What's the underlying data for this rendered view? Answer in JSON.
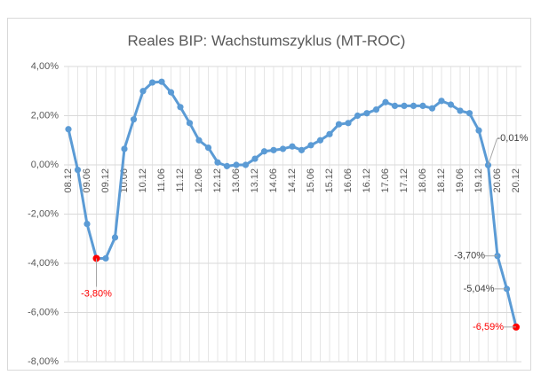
{
  "chart_data": {
    "type": "line",
    "title": "Reales BIP: Wachstumszyklus (MT-ROC)",
    "categories": [
      "08.12",
      null,
      "09.06",
      null,
      "09.12",
      null,
      "10.06",
      null,
      "10.12",
      null,
      "11.06",
      null,
      "11.12",
      null,
      "12.06",
      null,
      "12.12",
      null,
      "13.06",
      null,
      "13.12",
      null,
      "14.06",
      null,
      "14.12",
      null,
      "15.06",
      null,
      "15.12",
      null,
      "16.06",
      null,
      "16.12",
      null,
      "17.06",
      null,
      "17.12",
      null,
      "18.06",
      null,
      "18.12",
      null,
      "19.06",
      null,
      "19.12",
      null,
      "20.06",
      null,
      "20.12"
    ],
    "series": [
      {
        "name": "Reales BIP",
        "color": "#5b9bd5",
        "values": [
          1.45,
          -0.2,
          -2.4,
          -3.8,
          -3.8,
          -2.95,
          0.65,
          1.85,
          3.0,
          3.35,
          3.38,
          2.95,
          2.35,
          1.7,
          1.0,
          0.7,
          0.1,
          -0.05,
          0.0,
          0.0,
          0.25,
          0.55,
          0.6,
          0.65,
          0.75,
          0.6,
          0.8,
          1.0,
          1.25,
          1.65,
          1.7,
          2.0,
          2.1,
          2.25,
          2.55,
          2.4,
          2.4,
          2.4,
          2.4,
          2.3,
          2.6,
          2.45,
          2.2,
          2.1,
          1.4,
          -0.01,
          -3.7,
          -5.04,
          -6.59
        ],
        "value_labels": [
          null,
          null,
          null,
          "-3,80%",
          null,
          null,
          null,
          null,
          null,
          null,
          null,
          null,
          null,
          null,
          null,
          null,
          null,
          null,
          null,
          null,
          null,
          null,
          null,
          null,
          null,
          null,
          null,
          null,
          null,
          null,
          null,
          null,
          null,
          null,
          null,
          null,
          null,
          null,
          null,
          null,
          null,
          null,
          null,
          null,
          null,
          "-0,01%",
          "-3,70%",
          "-5,04%",
          "-6,59%"
        ]
      }
    ],
    "highlight": [
      3,
      48
    ],
    "highlight_color": "#ff0000",
    "ylim": [
      -8,
      4
    ],
    "yticks": [
      {
        "value": -8,
        "label": "-8,00%"
      },
      {
        "value": -6,
        "label": "-6,00%"
      },
      {
        "value": -4,
        "label": "-4,00%"
      },
      {
        "value": -2,
        "label": "-2,00%"
      },
      {
        "value": 0,
        "label": "0,00%"
      },
      {
        "value": 2,
        "label": "2,00%"
      },
      {
        "value": 4,
        "label": "4,00%"
      }
    ],
    "grid": true
  }
}
